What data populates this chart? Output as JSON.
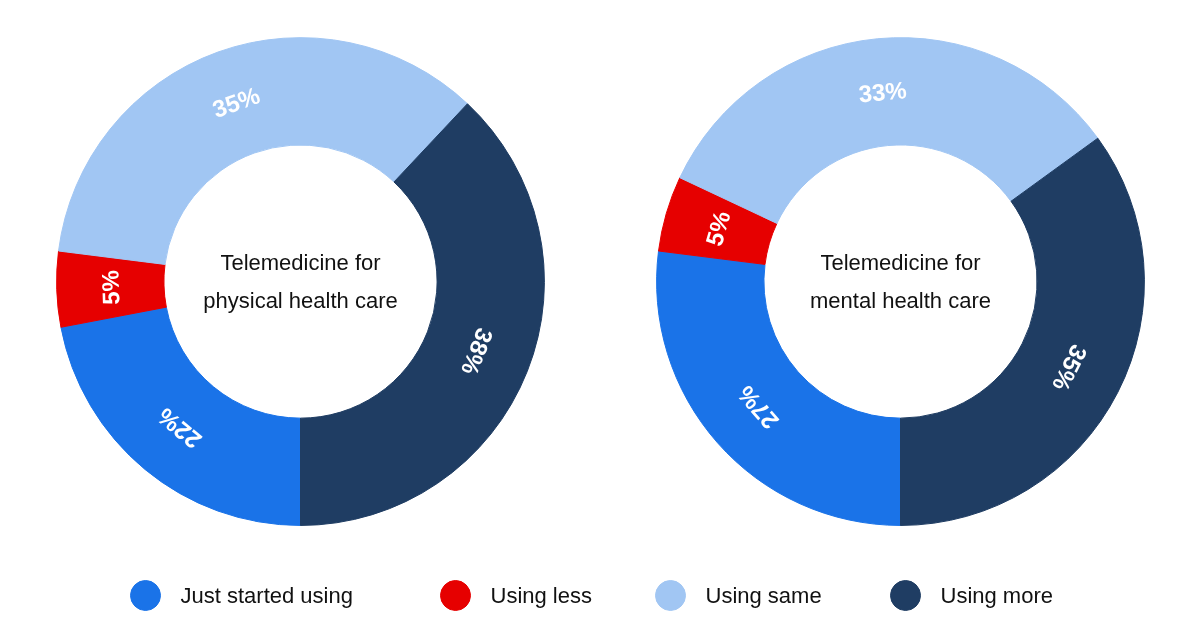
{
  "chart_data": [
    {
      "type": "donut",
      "title": "Telemedicine for physical health care",
      "categories": [
        "Just started using",
        "Using less",
        "Using same",
        "Using more"
      ],
      "values": [
        22,
        5,
        35,
        38
      ],
      "colors": [
        "#1a73e8",
        "#e60000",
        "#a1c6f3",
        "#1f3d63"
      ],
      "value_labels": [
        "22%",
        "5%",
        "35%",
        "38%"
      ],
      "legend": "bottom"
    },
    {
      "type": "donut",
      "title": "Telemedicine for mental health care",
      "categories": [
        null,
        null,
        null,
        null
      ],
      "values": [
        27,
        5,
        33,
        35
      ],
      "colors": [
        "#1a73e8",
        "#e60000",
        "#a1c6f3",
        "#1f3d63"
      ],
      "value_labels": [
        "27%",
        "5%",
        "33%",
        "35%"
      ]
    }
  ]
}
